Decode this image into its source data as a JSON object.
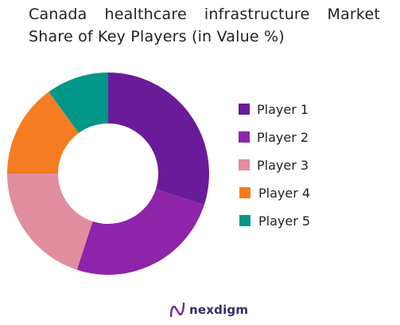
{
  "chart_data": {
    "type": "pie",
    "title_line1": "Canada healthcare infrastructure Market",
    "title_line2": "Share of Key Players (in Value %)",
    "categories": [
      "Player 1",
      "Player 2",
      "Player 3",
      "Player 4",
      "Player 5"
    ],
    "values": [
      30,
      25,
      20,
      15,
      10
    ],
    "colors": [
      "#6a1b9a",
      "#8e24aa",
      "#e08ea0",
      "#f57c20",
      "#009688"
    ],
    "donut": true,
    "legend_position": "right",
    "start_angle_deg": 0,
    "direction": "clockwise"
  },
  "logo": {
    "text": "nexdigm",
    "color": "#3b2a6b"
  }
}
